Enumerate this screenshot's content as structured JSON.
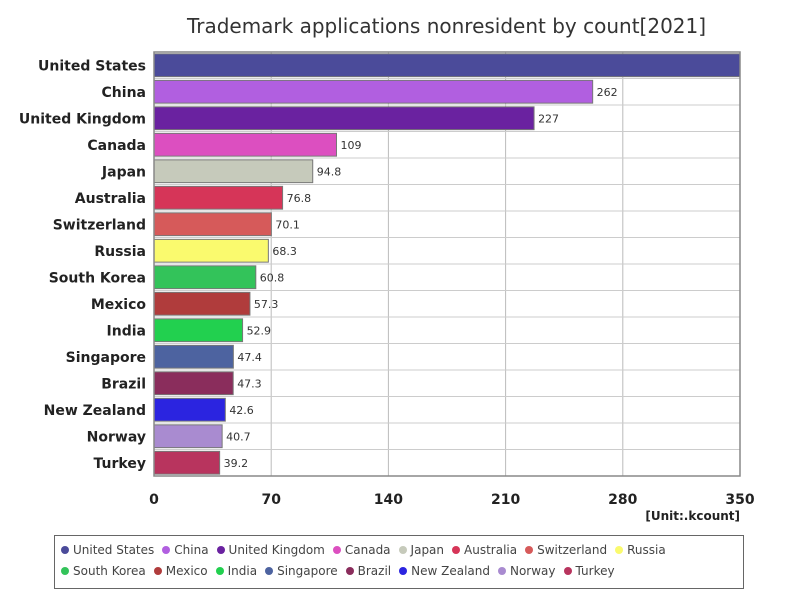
{
  "chart_data": {
    "type": "bar",
    "orientation": "horizontal",
    "title": "Trademark applications nonresident by count[2021]",
    "unit": "[Unit:.kcount]",
    "xlim": [
      0,
      350
    ],
    "x_ticks": [
      "0",
      "70",
      "140",
      "210",
      "280",
      "350"
    ],
    "grid": true,
    "legend_position": "bottom",
    "categories": [
      "United States",
      "China",
      "United Kingdom",
      "Canada",
      "Japan",
      "Australia",
      "Switzerland",
      "Russia",
      "South Korea",
      "Mexico",
      "India",
      "Singapore",
      "Brazil",
      "New Zealand",
      "Norway",
      "Turkey"
    ],
    "values": [
      350,
      262,
      227,
      109,
      94.8,
      76.8,
      70.1,
      68.3,
      60.8,
      57.3,
      52.9,
      47.4,
      47.3,
      42.6,
      40.7,
      39.2
    ],
    "value_labels": [
      "",
      "262",
      "227",
      "109",
      "94.8",
      "76.8",
      "70.1",
      "68.3",
      "60.8",
      "57.3",
      "52.9",
      "47.4",
      "47.3",
      "42.6",
      "40.7",
      "39.2"
    ],
    "colors": [
      "#4b4b9a",
      "#b15fe0",
      "#6a22a0",
      "#dc4fc0",
      "#c6cabb",
      "#d63558",
      "#d65a5a",
      "#fafa6e",
      "#33c35a",
      "#b03c3c",
      "#22d04f",
      "#4d63a0",
      "#8a2d5c",
      "#2b24e0",
      "#a98bd0",
      "#b8345e"
    ]
  }
}
